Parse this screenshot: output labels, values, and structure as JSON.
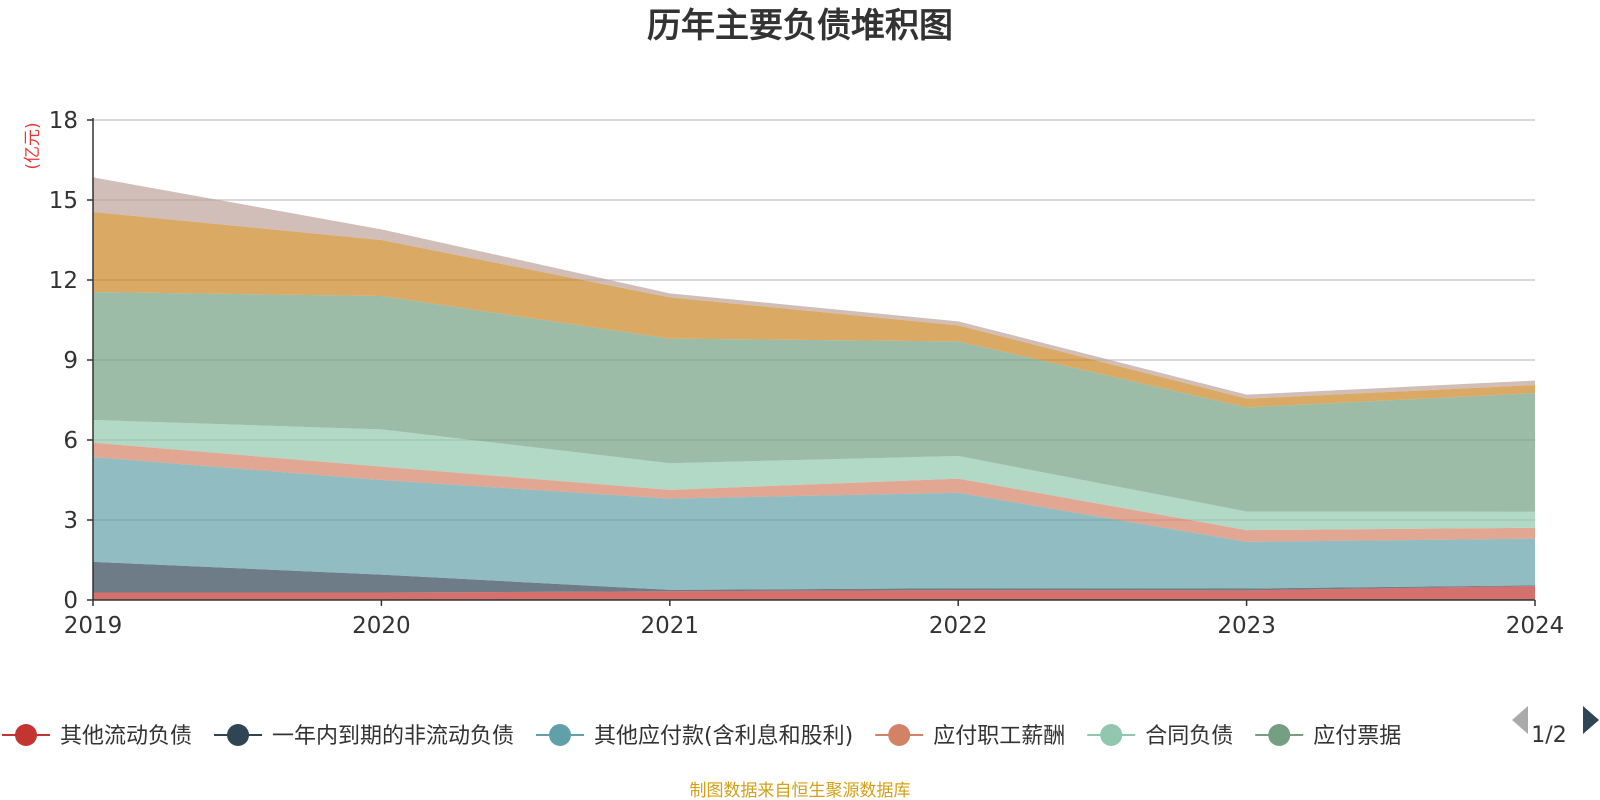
{
  "chart_data": {
    "type": "area",
    "stacked": true,
    "title": "历年主要负债堆积图",
    "unit_label": "(亿元)",
    "x": [
      "2019",
      "2020",
      "2021",
      "2022",
      "2023",
      "2024"
    ],
    "ylim": [
      0,
      18
    ],
    "yticks": [
      0,
      3,
      6,
      9,
      12,
      15,
      18
    ],
    "grid": true,
    "legend_position": "bottom",
    "legend_page": "1/2",
    "series": [
      {
        "name": "其他流动负债",
        "color": "#c23531",
        "values": [
          0.28,
          0.28,
          0.33,
          0.37,
          0.36,
          0.52
        ]
      },
      {
        "name": "一年内到期的非流动负债",
        "color": "#2f4554",
        "values": [
          1.15,
          0.67,
          0.05,
          0.07,
          0.07,
          0.03
        ]
      },
      {
        "name": "其他应付款(含利息和股利)",
        "color": "#61a0a8",
        "values": [
          3.93,
          3.55,
          3.42,
          3.58,
          1.75,
          1.75
        ]
      },
      {
        "name": "应付职工薪酬",
        "color": "#d48265",
        "values": [
          0.54,
          0.5,
          0.33,
          0.53,
          0.44,
          0.41
        ]
      },
      {
        "name": "合同负债",
        "color": "#91c7ae",
        "values": [
          0.85,
          1.4,
          1.0,
          0.85,
          0.7,
          0.6
        ]
      },
      {
        "name": "应付票据",
        "color": "#749f83",
        "values": [
          4.8,
          5.0,
          4.67,
          4.3,
          3.9,
          4.45
        ]
      },
      {
        "name": "",
        "color": "#ca8622",
        "values": [
          3.0,
          2.1,
          1.55,
          0.6,
          0.33,
          0.3
        ]
      },
      {
        "name": "",
        "color": "#bda29a",
        "values": [
          1.3,
          0.4,
          0.15,
          0.15,
          0.15,
          0.17
        ]
      }
    ]
  },
  "source_text": "制图数据来自恒生聚源数据库"
}
